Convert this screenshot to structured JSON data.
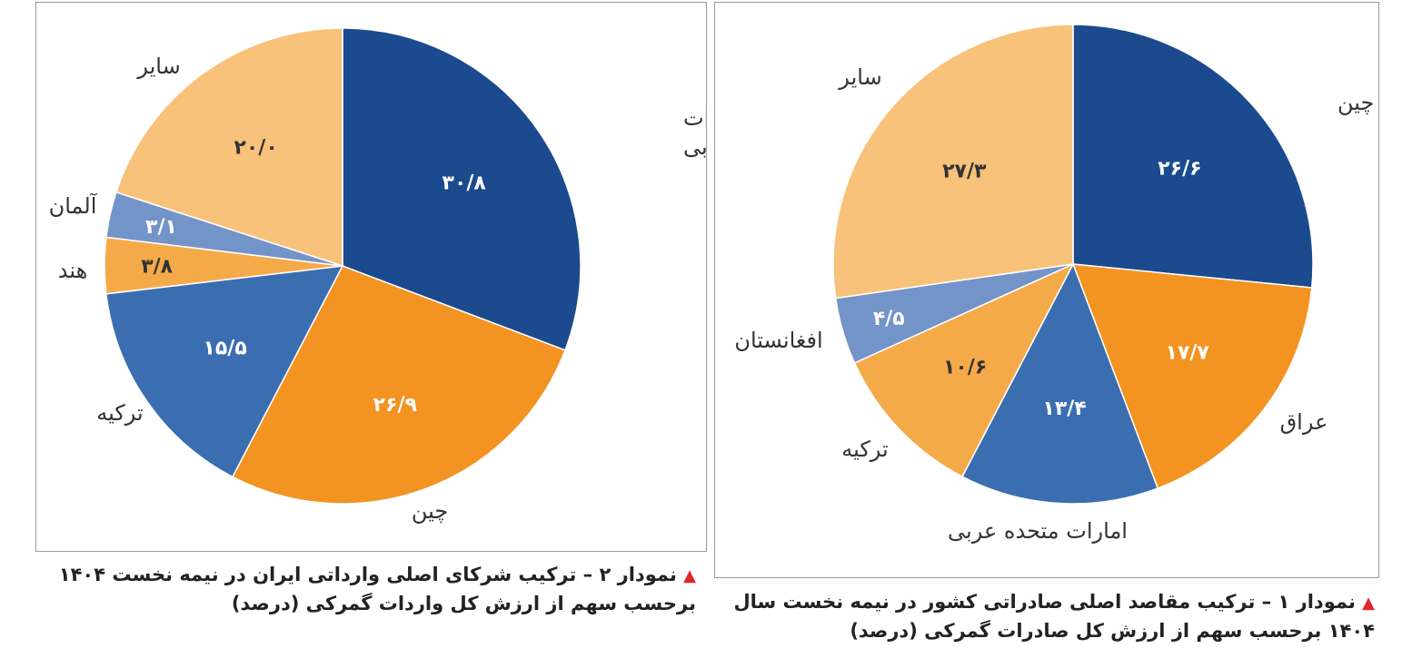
{
  "charts": [
    {
      "id": "right",
      "caption_line1": "نمودار ۱ – ترکیب مقاصد اصلی صادراتی کشور در نیمه نخست سال",
      "caption_line2": "۱۴۰۴ برحسب سهم از ارزش کل صادرات گمرکی (درصد)"
    },
    {
      "id": "left",
      "caption_line1": "نمودار ۲ – ترکیب شرکای اصلی وارداتی ایران در نیمه نخست ۱۴۰۴",
      "caption_line2": "برحسب سهم از ارزش کل واردات گمرکی (درصد)"
    }
  ],
  "caption_marker": "▲",
  "chart_data": [
    {
      "type": "pie",
      "title": "نمودار ۱ – ترکیب مقاصد اصلی صادراتی کشور در نیمه نخست سال ۱۴۰۴ برحسب سهم از ارزش کل صادرات گمرکی (درصد)",
      "start": "12 o'clock, clockwise",
      "slices": [
        {
          "label": "چین",
          "value": 26.6,
          "value_text": "۲۶/۶",
          "color": "#1b4a8e"
        },
        {
          "label": "عراق",
          "value": 17.7,
          "value_text": "۱۷/۷",
          "color": "#f39321"
        },
        {
          "label": "امارات متحده عربی",
          "value": 13.4,
          "value_text": "۱۳/۴",
          "color": "#3a6eb0"
        },
        {
          "label": "ترکیه",
          "value": 10.6,
          "value_text": "۱۰/۶",
          "color": "#f5aa4a"
        },
        {
          "label": "افغانستان",
          "value": 4.5,
          "value_text": "۴/۵",
          "color": "#7394c8"
        },
        {
          "label": "سایر",
          "value": 27.3,
          "value_text": "۲۷/۳",
          "color": "#f8c27a"
        }
      ]
    },
    {
      "type": "pie",
      "title": "نمودار ۲ – ترکیب شرکای اصلی وارداتی ایران در نیمه نخست ۱۴۰۴ برحسب سهم از ارزش کل واردات گمرکی (درصد)",
      "start": "12 o'clock, clockwise",
      "slices": [
        {
          "label": "امارات متحده عربی",
          "value": 30.8,
          "value_text": "۳۰/۸",
          "color": "#1b4a8e"
        },
        {
          "label": "چین",
          "value": 26.9,
          "value_text": "۲۶/۹",
          "color": "#f39321"
        },
        {
          "label": "ترکیه",
          "value": 15.5,
          "value_text": "۱۵/۵",
          "color": "#3a6eb0"
        },
        {
          "label": "هند",
          "value": 3.8,
          "value_text": "۳/۸",
          "color": "#f5aa4a"
        },
        {
          "label": "آلمان",
          "value": 3.1,
          "value_text": "۳/۱",
          "color": "#7394c8"
        },
        {
          "label": "سایر",
          "value": 20.0,
          "value_text": "۲۰/۰",
          "color": "#f8c27a"
        }
      ]
    }
  ]
}
